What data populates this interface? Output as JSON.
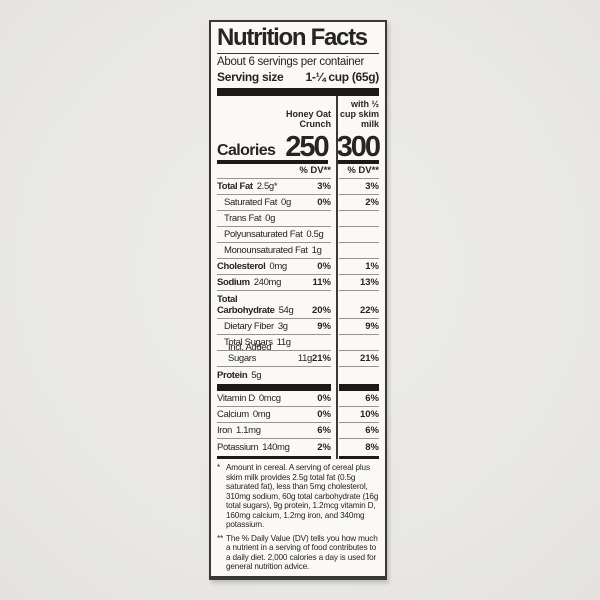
{
  "header": {
    "title": "Nutrition Facts",
    "servings_per_container": "About 6 servings per container",
    "serving_size_label": "Serving size",
    "serving_size_value": "1-¼ cup (65g)"
  },
  "columns": {
    "col1_header": "Honey Oat\nCrunch",
    "col2_header": "with ½\ncup skim\nmilk",
    "calories_label": "Calories",
    "calories_col1": "250",
    "calories_col2": "300",
    "dv_header": "% DV**"
  },
  "rows": [
    {
      "name": "Total Fat",
      "amount": "2.5g*",
      "dv1": "3%",
      "dv2": "3%"
    },
    {
      "name": "Saturated Fat",
      "amount": "0g",
      "dv1": "0%",
      "dv2": "2%"
    },
    {
      "name": "Trans Fat",
      "amount": "0g",
      "dv1": "",
      "dv2": ""
    },
    {
      "name": "Polyunsaturated Fat",
      "amount": "0.5g",
      "dv1": "",
      "dv2": ""
    },
    {
      "name": "Monounsaturated Fat",
      "amount": "1g",
      "dv1": "",
      "dv2": ""
    },
    {
      "name": "Cholesterol",
      "amount": "0mg",
      "dv1": "0%",
      "dv2": "1%"
    },
    {
      "name": "Sodium",
      "amount": "240mg",
      "dv1": "11%",
      "dv2": "13%"
    },
    {
      "name": "Total\nCarbohydrate",
      "amount": "54g",
      "dv1": "20%",
      "dv2": "22%"
    },
    {
      "name": "Dietary Fiber",
      "amount": "3g",
      "dv1": "9%",
      "dv2": "9%"
    },
    {
      "name": "Total Sugars",
      "amount": "11g",
      "dv1": "",
      "dv2": ""
    },
    {
      "name": "Incl. Added Sugars",
      "amount": "11g",
      "dv1": "21%",
      "dv2": "21%"
    },
    {
      "name": "Protein",
      "amount": "5g",
      "dv1": "",
      "dv2": ""
    }
  ],
  "vitamins": [
    {
      "name": "Vitamin D",
      "amount": "0mcg",
      "dv1": "0%",
      "dv2": "6%"
    },
    {
      "name": "Calcium",
      "amount": "0mg",
      "dv1": "0%",
      "dv2": "10%"
    },
    {
      "name": "Iron",
      "amount": "1.1mg",
      "dv1": "6%",
      "dv2": "6%"
    },
    {
      "name": "Potassium",
      "amount": "140mg",
      "dv1": "2%",
      "dv2": "8%"
    }
  ],
  "footnotes": {
    "fn1_marker": "*",
    "fn1_text": "Amount in cereal. A serving of cereal plus skim milk provides 2.5g total fat (0.5g saturated fat), less than 5mg cholesterol, 310mg sodium, 60g total carbohydrate (16g total sugars), 9g protein, 1.2mcg vitamin D, 160mg calcium, 1.2mg iron, and 340mg potassium.",
    "fn2_marker": "**",
    "fn2_text": "The % Daily Value (DV) tells you how much a nutrient in a serving of food contributes to a daily diet. 2,000 calories a day is used for general nutrition advice."
  },
  "colors": {
    "page_background": "#eae9e6",
    "label_background": "#faf9f6",
    "text": "#262522",
    "hairline": "#96948f",
    "bar": "#1b1a18"
  }
}
